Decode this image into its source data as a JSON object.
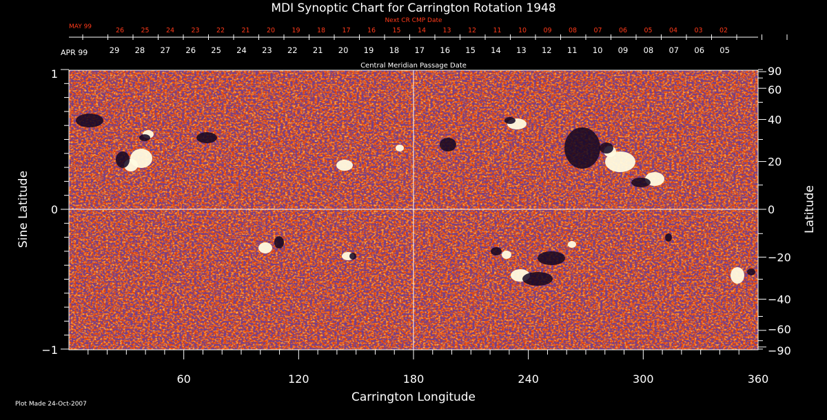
{
  "title": "MDI Synoptic Chart for Carrington Rotation 1948",
  "next_cmp": {
    "label": "Next CR CMP Date",
    "month": "MAY 99",
    "days": [
      "26",
      "25",
      "24",
      "23",
      "22",
      "21",
      "20",
      "19",
      "18",
      "17",
      "16",
      "15",
      "14",
      "13",
      "12",
      "11",
      "10",
      "09",
      "08",
      "07",
      "06",
      "05",
      "04",
      "03",
      "02"
    ]
  },
  "cmp": {
    "label": "Central Meridian Passage Date",
    "month": "APR 99",
    "days": [
      "29",
      "28",
      "27",
      "26",
      "25",
      "24",
      "23",
      "22",
      "21",
      "20",
      "19",
      "18",
      "17",
      "16",
      "15",
      "14",
      "13",
      "12",
      "11",
      "10",
      "09",
      "08",
      "07",
      "06",
      "05"
    ]
  },
  "x_axis": {
    "label": "Carrington Longitude",
    "ticks": [
      "60",
      "120",
      "180",
      "240",
      "300",
      "360"
    ]
  },
  "y_left": {
    "label": "Sine Latitude",
    "ticks": [
      "1",
      "0",
      "−1"
    ]
  },
  "y_right": {
    "label": "Latitude",
    "ticks": [
      "90",
      "60",
      "40",
      "20",
      "0",
      "−20",
      "−40",
      "−60",
      "−90"
    ]
  },
  "footer": "Plot Made 24-Oct-2007",
  "colors": {
    "background": "#000000",
    "map_base": "#e8420c",
    "axis": "#ffffff",
    "date_accent": "#ff3a1a"
  }
}
